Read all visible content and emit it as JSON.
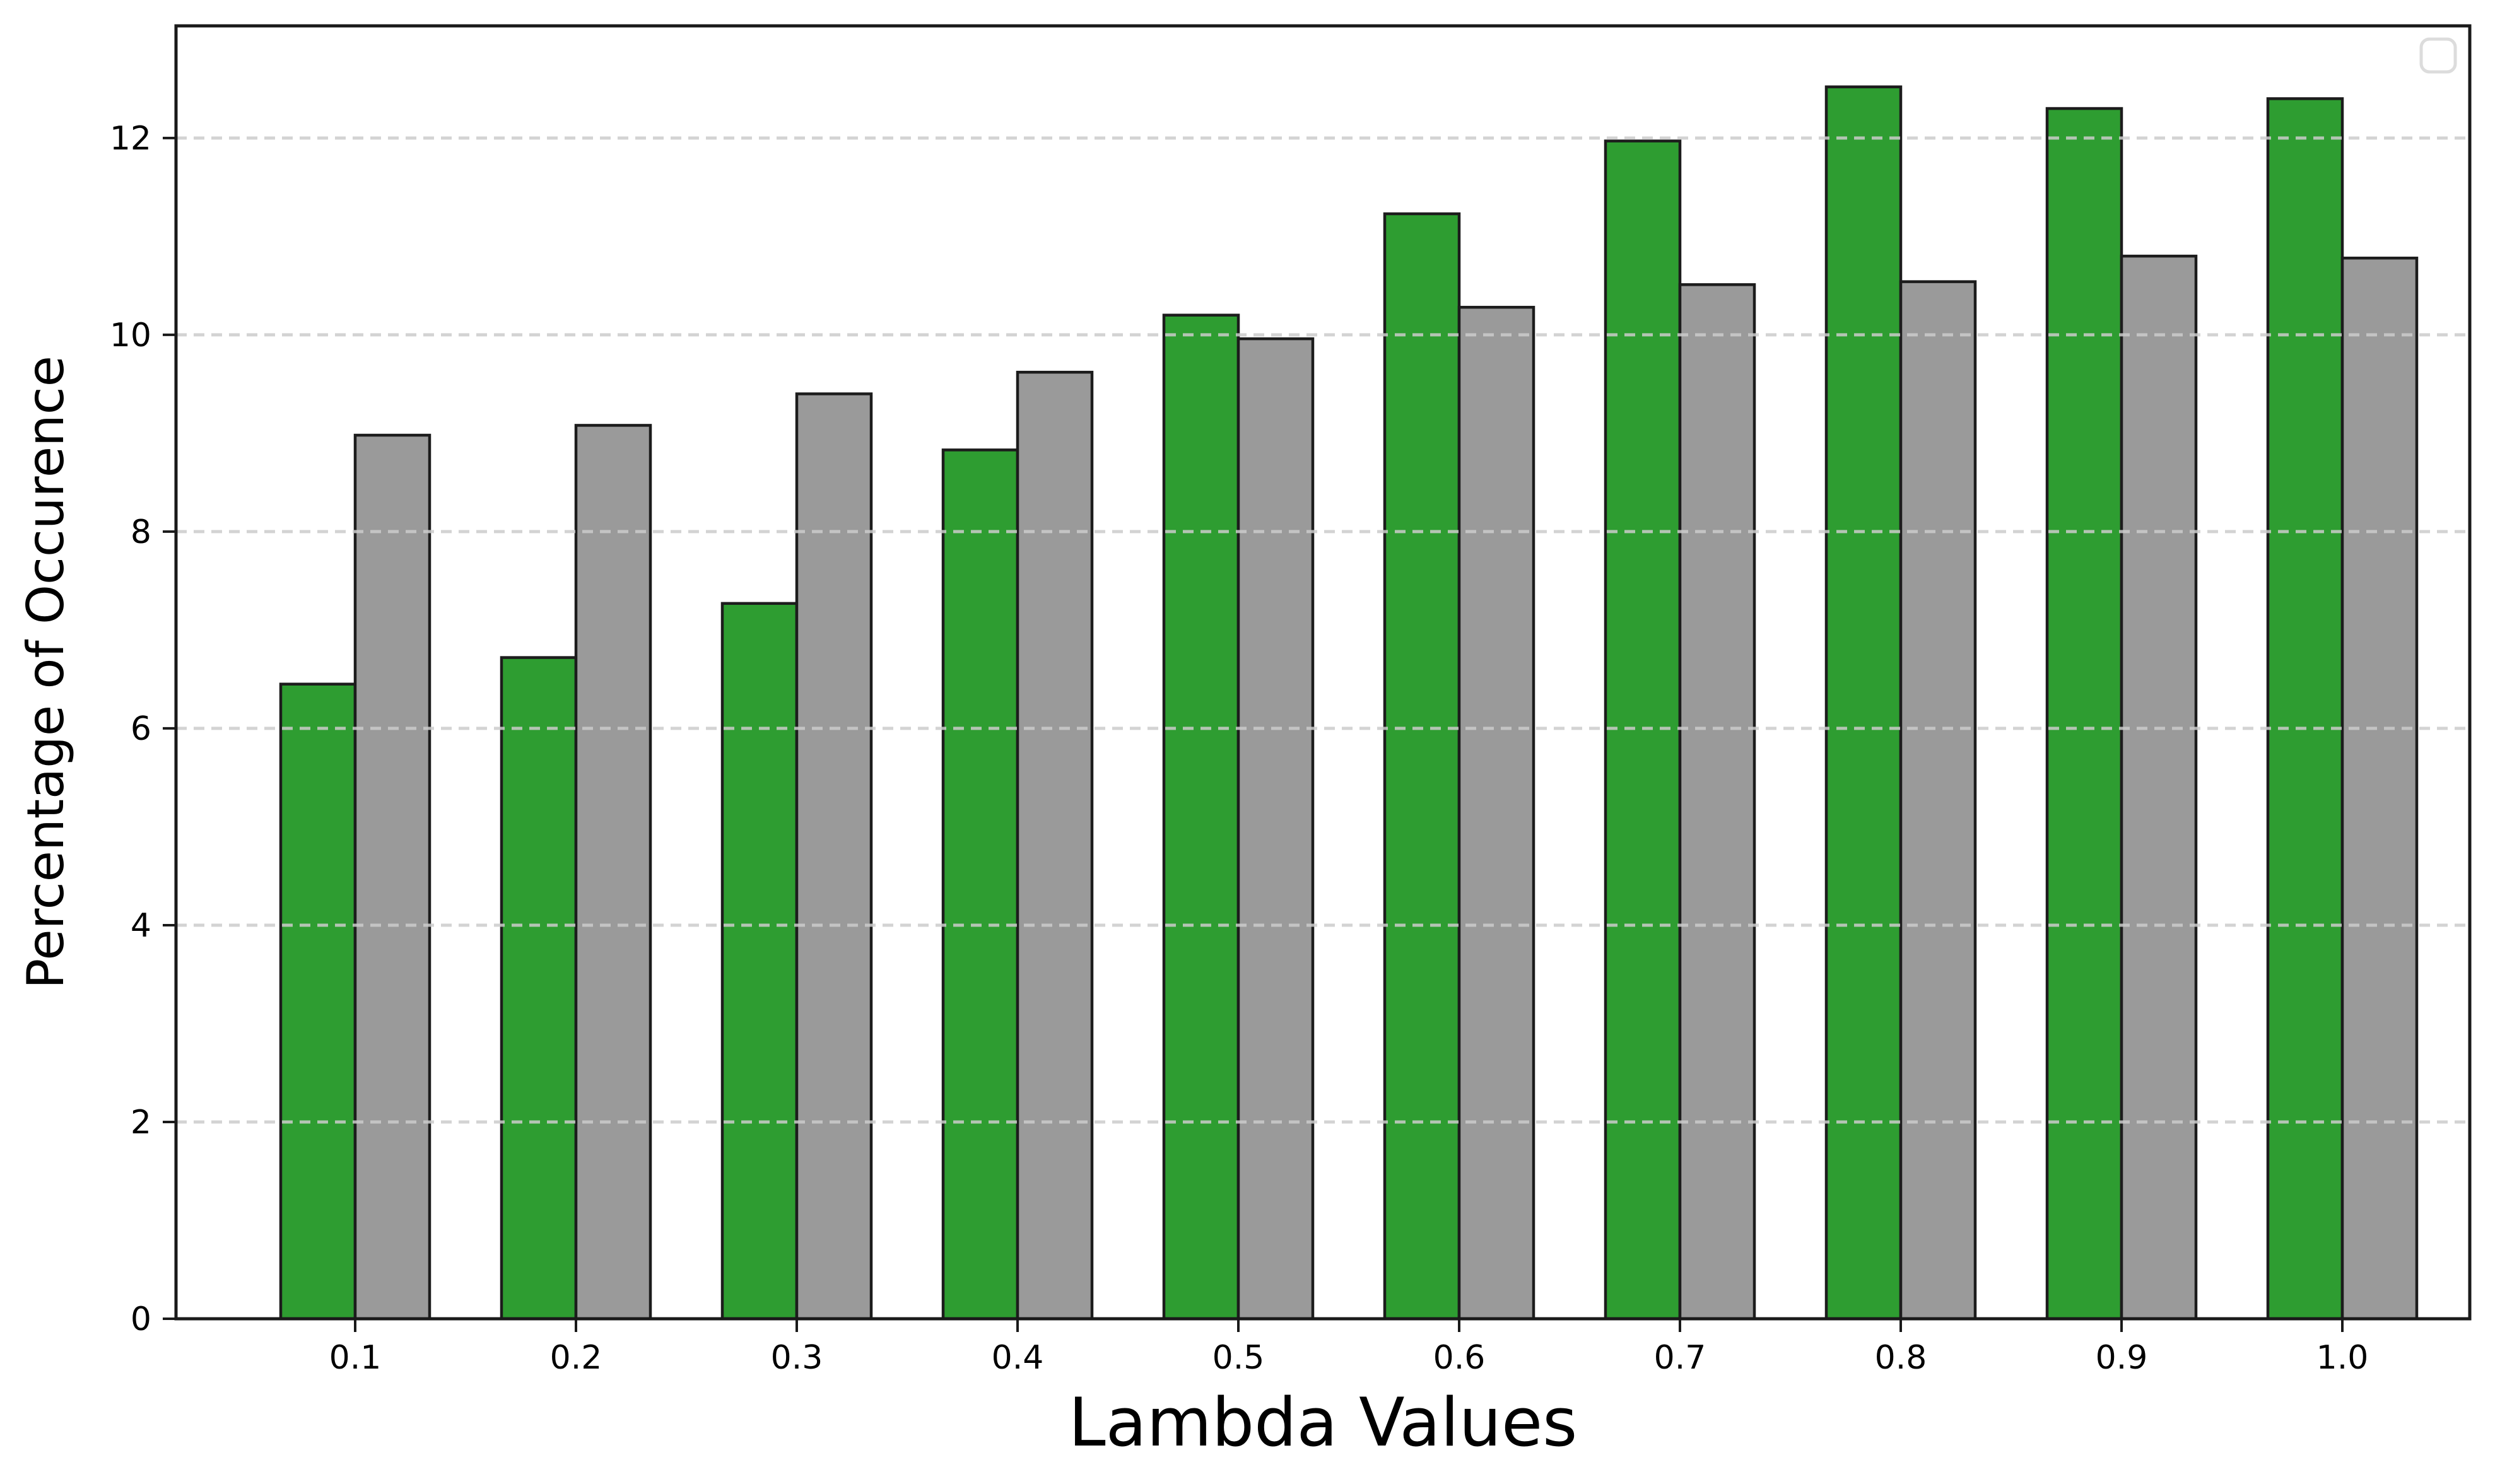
{
  "figure": {
    "background": "#ffffff",
    "spine_color": "#1a1a1a"
  },
  "chart_data": {
    "type": "bar",
    "title": "",
    "xlabel": "Lambda Values",
    "ylabel": "Percentage of Occurence",
    "categories": [
      "0.1",
      "0.2",
      "0.3",
      "0.4",
      "0.5",
      "0.6",
      "0.7",
      "0.8",
      "0.9",
      "1.0"
    ],
    "series": [
      {
        "name": "green",
        "color": "#2e9d31",
        "values": [
          6.45,
          6.72,
          7.27,
          8.83,
          10.2,
          11.23,
          11.97,
          12.52,
          12.3,
          12.4
        ]
      },
      {
        "name": "gray",
        "color": "#9a9a9a",
        "values": [
          8.98,
          9.08,
          9.4,
          9.62,
          9.96,
          10.28,
          10.51,
          10.54,
          10.8,
          10.78
        ]
      }
    ],
    "bar_edge_color": "#1c1c1c",
    "ylim": [
      0,
      13.14
    ],
    "yticks": [
      0,
      2,
      4,
      6,
      8,
      10,
      12
    ],
    "grid": {
      "visible": true,
      "axis": "y",
      "style": "dashed",
      "color": "#cccccc",
      "drawn_above_bars": true
    },
    "legend": {
      "visible": true,
      "entries": [],
      "position": "upper right"
    }
  }
}
